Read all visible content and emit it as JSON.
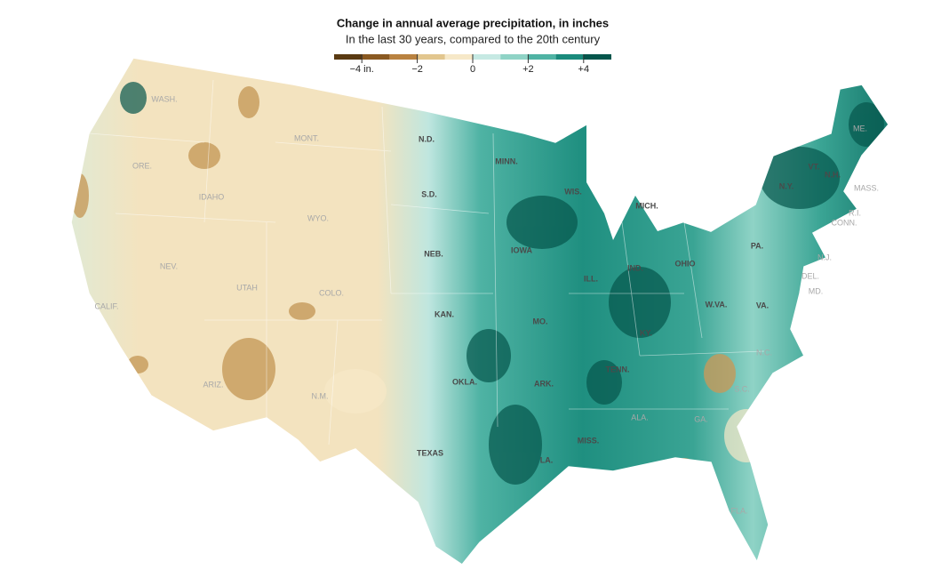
{
  "legend": {
    "title": "Change in annual average precipitation, in inches",
    "subtitle": "In the last 30 years, compared to the 20th century",
    "range": [
      -5,
      5
    ],
    "colors": [
      "#5a3a12",
      "#8a5a22",
      "#b98240",
      "#e2c68e",
      "#f6e8c8",
      "#c6e9e3",
      "#8fd3c6",
      "#4fb3a4",
      "#1a8a7c",
      "#05564c"
    ],
    "ticks": [
      {
        "value": -4,
        "label": "−4 in."
      },
      {
        "value": -2,
        "label": "−2"
      },
      0,
      {
        "value": 2,
        "label": "+2"
      },
      {
        "value": 4,
        "label": "+4"
      }
    ]
  },
  "states": [
    "WASH.",
    "MONT.",
    "N.D.",
    "MINN.",
    "ORE.",
    "IDAHO",
    "WYO.",
    "S.D.",
    "WIS.",
    "MICH.",
    "N.Y.",
    "VT.",
    "N.H.",
    "ME.",
    "MASS.",
    "R.I.",
    "CONN.",
    "NEV.",
    "UTAH",
    "COLO.",
    "NEB.",
    "IOWA",
    "ILL.",
    "IND.",
    "OHIO",
    "PA.",
    "N.J.",
    "DEL.",
    "MD.",
    "CALIF.",
    "KAN.",
    "MO.",
    "W.VA.",
    "VA.",
    "KY.",
    "N.C.",
    "TENN.",
    "ARK.",
    "OKLA.",
    "ARIZ.",
    "N.M.",
    "S.C.",
    "ALA.",
    "GA.",
    "MISS.",
    "TEXAS",
    "LA.",
    "FLA."
  ]
}
